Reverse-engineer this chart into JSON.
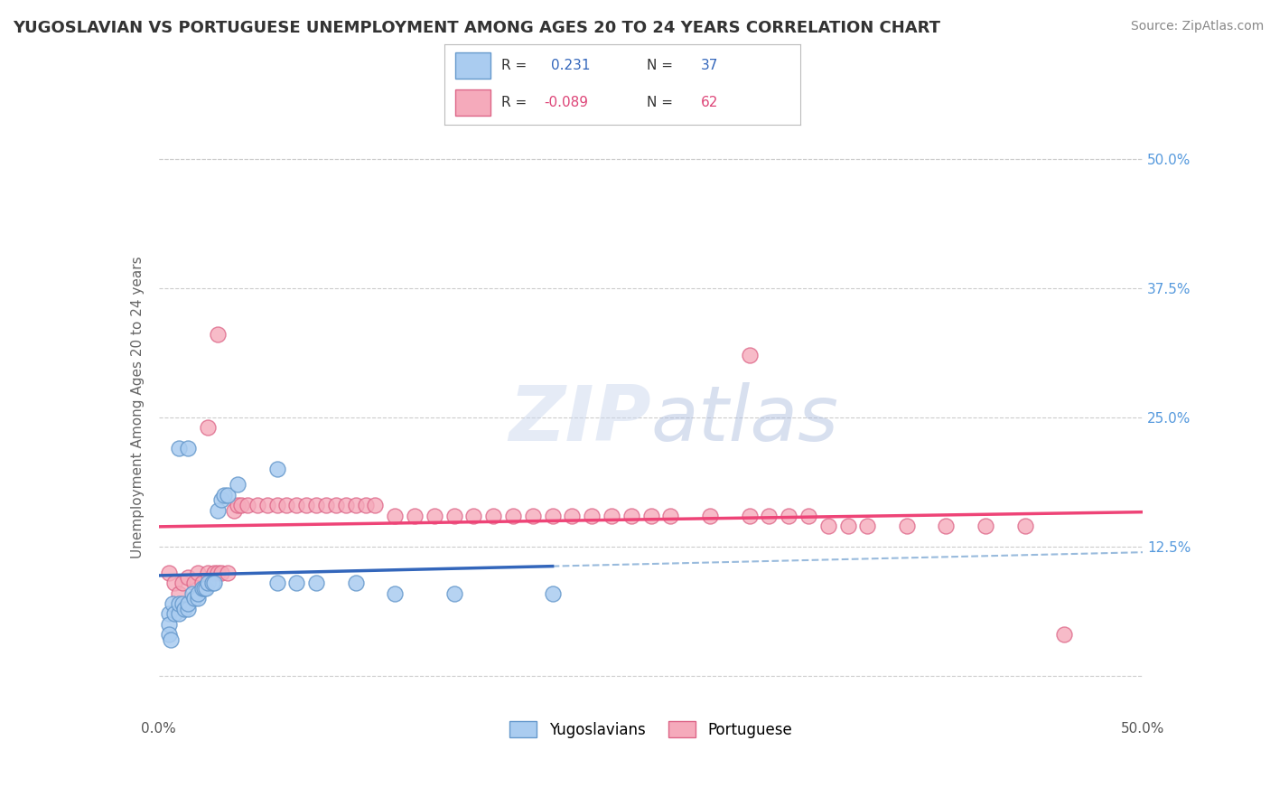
{
  "title": "YUGOSLAVIAN VS PORTUGUESE UNEMPLOYMENT AMONG AGES 20 TO 24 YEARS CORRELATION CHART",
  "source": "Source: ZipAtlas.com",
  "ylabel": "Unemployment Among Ages 20 to 24 years",
  "xlim": [
    0.0,
    0.5
  ],
  "ylim": [
    -0.04,
    0.56
  ],
  "xticks": [
    0.0,
    0.125,
    0.25,
    0.375,
    0.5
  ],
  "xticklabels": [
    "0.0%",
    "",
    "",
    "",
    "50.0%"
  ],
  "yticks": [
    0.0,
    0.125,
    0.25,
    0.375,
    0.5
  ],
  "yticklabels": [
    "",
    "12.5%",
    "25.0%",
    "37.5%",
    "50.0%"
  ],
  "background_color": "#ffffff",
  "grid_color": "#cccccc",
  "blue_color": "#aaccf0",
  "pink_color": "#f5aabb",
  "blue_edge_color": "#6699cc",
  "pink_edge_color": "#dd6688",
  "blue_line_color": "#3366bb",
  "pink_line_color": "#ee4477",
  "dashed_line_color": "#99bbdd",
  "title_fontsize": 13,
  "axis_label_fontsize": 11,
  "tick_fontsize": 11,
  "source_fontsize": 10,
  "blue_scatter": [
    [
      0.005,
      0.06
    ],
    [
      0.005,
      0.05
    ],
    [
      0.007,
      0.07
    ],
    [
      0.008,
      0.06
    ],
    [
      0.01,
      0.06
    ],
    [
      0.01,
      0.07
    ],
    [
      0.012,
      0.07
    ],
    [
      0.013,
      0.065
    ],
    [
      0.015,
      0.065
    ],
    [
      0.015,
      0.07
    ],
    [
      0.017,
      0.08
    ],
    [
      0.018,
      0.075
    ],
    [
      0.02,
      0.075
    ],
    [
      0.02,
      0.08
    ],
    [
      0.022,
      0.085
    ],
    [
      0.023,
      0.085
    ],
    [
      0.024,
      0.085
    ],
    [
      0.025,
      0.09
    ],
    [
      0.027,
      0.09
    ],
    [
      0.028,
      0.09
    ],
    [
      0.03,
      0.16
    ],
    [
      0.032,
      0.17
    ],
    [
      0.033,
      0.175
    ],
    [
      0.035,
      0.175
    ],
    [
      0.04,
      0.185
    ],
    [
      0.06,
      0.2
    ],
    [
      0.005,
      0.04
    ],
    [
      0.006,
      0.035
    ],
    [
      0.01,
      0.22
    ],
    [
      0.015,
      0.22
    ],
    [
      0.06,
      0.09
    ],
    [
      0.07,
      0.09
    ],
    [
      0.08,
      0.09
    ],
    [
      0.1,
      0.09
    ],
    [
      0.12,
      0.08
    ],
    [
      0.15,
      0.08
    ],
    [
      0.2,
      0.08
    ]
  ],
  "pink_scatter": [
    [
      0.005,
      0.1
    ],
    [
      0.008,
      0.09
    ],
    [
      0.01,
      0.08
    ],
    [
      0.012,
      0.09
    ],
    [
      0.015,
      0.095
    ],
    [
      0.018,
      0.09
    ],
    [
      0.02,
      0.1
    ],
    [
      0.022,
      0.09
    ],
    [
      0.025,
      0.1
    ],
    [
      0.028,
      0.1
    ],
    [
      0.03,
      0.1
    ],
    [
      0.032,
      0.1
    ],
    [
      0.035,
      0.1
    ],
    [
      0.038,
      0.16
    ],
    [
      0.04,
      0.165
    ],
    [
      0.042,
      0.165
    ],
    [
      0.025,
      0.24
    ],
    [
      0.045,
      0.165
    ],
    [
      0.05,
      0.165
    ],
    [
      0.055,
      0.165
    ],
    [
      0.06,
      0.165
    ],
    [
      0.065,
      0.165
    ],
    [
      0.07,
      0.165
    ],
    [
      0.075,
      0.165
    ],
    [
      0.08,
      0.165
    ],
    [
      0.03,
      0.33
    ],
    [
      0.085,
      0.165
    ],
    [
      0.09,
      0.165
    ],
    [
      0.095,
      0.165
    ],
    [
      0.1,
      0.165
    ],
    [
      0.105,
      0.165
    ],
    [
      0.11,
      0.165
    ],
    [
      0.12,
      0.155
    ],
    [
      0.13,
      0.155
    ],
    [
      0.14,
      0.155
    ],
    [
      0.15,
      0.155
    ],
    [
      0.16,
      0.155
    ],
    [
      0.17,
      0.155
    ],
    [
      0.18,
      0.155
    ],
    [
      0.19,
      0.155
    ],
    [
      0.2,
      0.155
    ],
    [
      0.21,
      0.155
    ],
    [
      0.22,
      0.155
    ],
    [
      0.23,
      0.155
    ],
    [
      0.24,
      0.155
    ],
    [
      0.25,
      0.155
    ],
    [
      0.26,
      0.155
    ],
    [
      0.28,
      0.155
    ],
    [
      0.3,
      0.155
    ],
    [
      0.31,
      0.155
    ],
    [
      0.32,
      0.155
    ],
    [
      0.33,
      0.155
    ],
    [
      0.34,
      0.145
    ],
    [
      0.35,
      0.145
    ],
    [
      0.36,
      0.145
    ],
    [
      0.38,
      0.145
    ],
    [
      0.3,
      0.31
    ],
    [
      0.4,
      0.145
    ],
    [
      0.42,
      0.145
    ],
    [
      0.44,
      0.145
    ],
    [
      0.46,
      0.04
    ]
  ]
}
